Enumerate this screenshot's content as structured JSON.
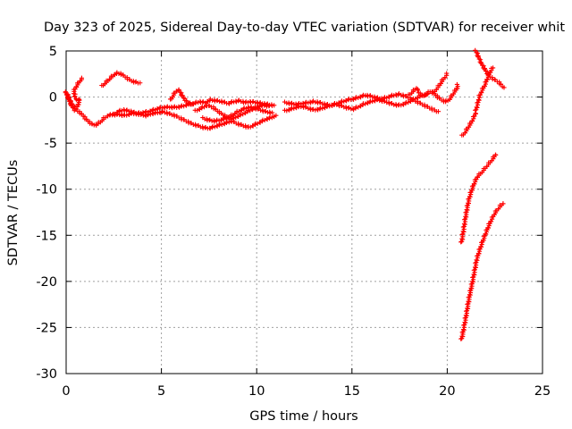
{
  "chart_data": {
    "type": "scatter",
    "title": "Day 323 of 2025, Sidereal Day-to-day VTEC variation (SDTVAR) for receiver whit",
    "xlabel": "GPS time / hours",
    "ylabel": "SDTVAR / TECUs",
    "xlim": [
      0,
      25
    ],
    "ylim": [
      -30,
      5
    ],
    "xticks": [
      0,
      5,
      10,
      15,
      20,
      25
    ],
    "yticks": [
      5,
      0,
      -5,
      -10,
      -15,
      -20,
      -25,
      -30
    ],
    "grid": true,
    "marker": "plus",
    "series": [
      {
        "color": "#ff0000",
        "segments": [
          [
            [
              0.0,
              0.5
            ],
            [
              0.1,
              0.1
            ],
            [
              0.25,
              -0.6
            ],
            [
              0.45,
              -1.2
            ],
            [
              0.6,
              -1.5
            ],
            [
              0.8,
              -1.8
            ],
            [
              1.0,
              -2.3
            ],
            [
              1.2,
              -2.7
            ],
            [
              1.4,
              -3.0
            ],
            [
              1.6,
              -3.0
            ],
            [
              1.8,
              -2.7
            ],
            [
              2.0,
              -2.3
            ],
            [
              2.2,
              -2.0
            ],
            [
              2.5,
              -1.9
            ],
            [
              2.8,
              -1.9
            ],
            [
              3.1,
              -2.0
            ],
            [
              3.4,
              -1.8
            ],
            [
              3.7,
              -1.8
            ],
            [
              4.0,
              -1.7
            ],
            [
              4.3,
              -1.6
            ],
            [
              4.6,
              -1.4
            ],
            [
              4.9,
              -1.2
            ],
            [
              5.2,
              -1.1
            ],
            [
              5.5,
              -1.1
            ],
            [
              5.8,
              -1.1
            ],
            [
              6.1,
              -1.0
            ],
            [
              6.4,
              -0.8
            ],
            [
              6.7,
              -0.7
            ],
            [
              7.0,
              -0.5
            ],
            [
              7.3,
              -0.6
            ],
            [
              7.6,
              -0.3
            ],
            [
              7.9,
              -0.4
            ],
            [
              8.2,
              -0.5
            ],
            [
              8.5,
              -0.7
            ],
            [
              8.8,
              -0.5
            ],
            [
              9.1,
              -0.4
            ],
            [
              9.4,
              -0.6
            ],
            [
              9.7,
              -0.5
            ],
            [
              10.0,
              -0.6
            ],
            [
              10.3,
              -0.7
            ],
            [
              10.6,
              -0.8
            ],
            [
              10.9,
              -0.9
            ]
          ],
          [
            [
              2.5,
              -1.9
            ],
            [
              2.7,
              -1.6
            ],
            [
              3.0,
              -1.4
            ],
            [
              3.3,
              -1.5
            ],
            [
              3.6,
              -1.7
            ],
            [
              3.9,
              -1.9
            ],
            [
              4.2,
              -2.0
            ],
            [
              4.5,
              -1.8
            ],
            [
              4.8,
              -1.7
            ],
            [
              5.1,
              -1.6
            ],
            [
              5.4,
              -1.8
            ],
            [
              5.7,
              -2.0
            ],
            [
              6.0,
              -2.3
            ],
            [
              6.3,
              -2.6
            ],
            [
              6.6,
              -2.9
            ],
            [
              6.9,
              -3.1
            ],
            [
              7.2,
              -3.3
            ],
            [
              7.5,
              -3.4
            ],
            [
              7.8,
              -3.2
            ],
            [
              8.1,
              -3.0
            ],
            [
              8.4,
              -2.8
            ],
            [
              8.7,
              -2.6
            ],
            [
              9.0,
              -2.9
            ],
            [
              9.3,
              -3.1
            ],
            [
              9.6,
              -3.3
            ],
            [
              9.9,
              -3.0
            ],
            [
              10.2,
              -2.7
            ],
            [
              10.5,
              -2.4
            ],
            [
              10.8,
              -2.2
            ],
            [
              11.0,
              -2.0
            ]
          ],
          [
            [
              0.0,
              0.4
            ],
            [
              0.15,
              -0.3
            ],
            [
              0.3,
              -1.0
            ],
            [
              0.45,
              -1.4
            ],
            [
              0.6,
              -1.0
            ],
            [
              0.7,
              -0.3
            ],
            [
              0.5,
              -0.2
            ],
            [
              0.4,
              0.6
            ],
            [
              0.55,
              1.2
            ],
            [
              0.7,
              1.7
            ],
            [
              0.85,
              2.0
            ]
          ],
          [
            [
              1.9,
              1.2
            ],
            [
              2.1,
              1.6
            ],
            [
              2.3,
              2.0
            ],
            [
              2.5,
              2.4
            ],
            [
              2.7,
              2.6
            ],
            [
              2.9,
              2.5
            ],
            [
              3.1,
              2.2
            ],
            [
              3.3,
              1.9
            ],
            [
              3.5,
              1.7
            ],
            [
              3.7,
              1.6
            ],
            [
              3.85,
              1.5
            ]
          ],
          [
            [
              5.5,
              -0.3
            ],
            [
              5.6,
              0.1
            ],
            [
              5.75,
              0.6
            ],
            [
              5.9,
              0.8
            ],
            [
              6.05,
              0.3
            ],
            [
              6.2,
              -0.2
            ],
            [
              6.4,
              -0.6
            ],
            [
              6.6,
              -0.8
            ]
          ],
          [
            [
              6.8,
              -1.5
            ],
            [
              7.1,
              -1.2
            ],
            [
              7.4,
              -0.9
            ],
            [
              7.7,
              -1.1
            ],
            [
              8.0,
              -1.6
            ],
            [
              8.3,
              -2.0
            ],
            [
              8.6,
              -2.4
            ],
            [
              8.9,
              -2.2
            ],
            [
              9.2,
              -1.9
            ],
            [
              9.5,
              -1.6
            ],
            [
              9.8,
              -1.3
            ],
            [
              10.1,
              -1.0
            ],
            [
              10.4,
              -0.9
            ],
            [
              10.7,
              -1.0
            ]
          ],
          [
            [
              7.2,
              -2.3
            ],
            [
              7.5,
              -2.5
            ],
            [
              7.8,
              -2.6
            ],
            [
              8.1,
              -2.5
            ],
            [
              8.4,
              -2.3
            ],
            [
              8.7,
              -2.0
            ],
            [
              9.0,
              -1.6
            ],
            [
              9.3,
              -1.3
            ],
            [
              9.6,
              -1.1
            ],
            [
              9.9,
              -1.2
            ],
            [
              10.2,
              -1.4
            ],
            [
              10.5,
              -1.6
            ],
            [
              10.8,
              -1.7
            ]
          ],
          [
            [
              11.5,
              -1.5
            ],
            [
              11.8,
              -1.3
            ],
            [
              12.1,
              -1.1
            ],
            [
              12.4,
              -1.0
            ],
            [
              12.7,
              -1.2
            ],
            [
              13.0,
              -1.4
            ],
            [
              13.3,
              -1.3
            ],
            [
              13.6,
              -1.1
            ],
            [
              13.9,
              -0.9
            ],
            [
              14.2,
              -0.8
            ],
            [
              14.5,
              -1.0
            ],
            [
              14.8,
              -1.2
            ],
            [
              15.1,
              -1.3
            ],
            [
              15.4,
              -1.0
            ],
            [
              15.7,
              -0.7
            ],
            [
              16.0,
              -0.5
            ],
            [
              16.3,
              -0.3
            ],
            [
              16.6,
              -0.4
            ],
            [
              16.9,
              -0.6
            ],
            [
              17.2,
              -0.8
            ],
            [
              17.5,
              -0.9
            ],
            [
              17.8,
              -0.7
            ],
            [
              18.1,
              -0.4
            ],
            [
              18.4,
              -0.1
            ],
            [
              18.7,
              0.2
            ],
            [
              19.0,
              0.3
            ]
          ],
          [
            [
              11.5,
              -0.6
            ],
            [
              11.8,
              -0.7
            ],
            [
              12.1,
              -0.8
            ],
            [
              12.4,
              -0.7
            ],
            [
              12.7,
              -0.6
            ],
            [
              13.0,
              -0.5
            ],
            [
              13.3,
              -0.6
            ],
            [
              13.6,
              -0.8
            ],
            [
              13.9,
              -0.9
            ],
            [
              14.2,
              -0.7
            ],
            [
              14.5,
              -0.5
            ],
            [
              14.8,
              -0.3
            ],
            [
              15.1,
              -0.2
            ],
            [
              15.4,
              0.0
            ],
            [
              15.7,
              0.2
            ],
            [
              16.0,
              0.1
            ],
            [
              16.3,
              -0.1
            ],
            [
              16.6,
              -0.2
            ],
            [
              16.9,
              0.0
            ],
            [
              17.2,
              0.2
            ],
            [
              17.5,
              0.3
            ],
            [
              17.8,
              0.1
            ],
            [
              18.1,
              -0.2
            ],
            [
              18.4,
              -0.5
            ],
            [
              18.7,
              -0.8
            ],
            [
              19.0,
              -1.1
            ],
            [
              19.3,
              -1.4
            ],
            [
              19.5,
              -1.6
            ]
          ],
          [
            [
              18.0,
              0.2
            ],
            [
              18.2,
              0.6
            ],
            [
              18.4,
              1.0
            ],
            [
              18.5,
              0.5
            ],
            [
              18.7,
              0.1
            ],
            [
              18.9,
              0.3
            ],
            [
              19.1,
              0.6
            ],
            [
              19.3,
              0.4
            ],
            [
              19.5,
              0.0
            ],
            [
              19.7,
              -0.3
            ],
            [
              19.9,
              -0.5
            ],
            [
              20.1,
              -0.3
            ],
            [
              20.3,
              0.3
            ],
            [
              20.5,
              0.9
            ],
            [
              20.55,
              1.3
            ]
          ],
          [
            [
              19.3,
              0.5
            ],
            [
              19.45,
              0.9
            ],
            [
              19.6,
              1.3
            ],
            [
              19.75,
              1.8
            ],
            [
              19.9,
              2.2
            ],
            [
              20.0,
              2.5
            ]
          ],
          [
            [
              20.8,
              -4.2
            ],
            [
              20.95,
              -3.8
            ],
            [
              21.1,
              -3.3
            ],
            [
              21.25,
              -2.8
            ],
            [
              21.4,
              -2.2
            ],
            [
              21.5,
              -1.7
            ]
          ],
          [
            [
              21.5,
              -1.5
            ],
            [
              21.6,
              -0.7
            ],
            [
              21.7,
              0.1
            ],
            [
              21.8,
              0.6
            ],
            [
              21.9,
              1.0
            ],
            [
              22.0,
              1.4
            ],
            [
              22.1,
              2.0
            ],
            [
              22.2,
              2.5
            ],
            [
              22.3,
              2.9
            ],
            [
              22.4,
              3.2
            ]
          ],
          [
            [
              21.5,
              5.0
            ],
            [
              21.65,
              4.3
            ],
            [
              21.8,
              3.6
            ],
            [
              21.95,
              3.1
            ],
            [
              22.1,
              2.6
            ],
            [
              22.25,
              2.2
            ],
            [
              22.4,
              2.0
            ],
            [
              22.55,
              1.8
            ],
            [
              22.7,
              1.6
            ],
            [
              22.85,
              1.3
            ],
            [
              22.95,
              1.0
            ]
          ],
          [
            [
              20.75,
              -15.8
            ],
            [
              20.85,
              -14.5
            ],
            [
              20.95,
              -13.2
            ],
            [
              21.05,
              -12.0
            ],
            [
              21.15,
              -11.0
            ],
            [
              21.3,
              -10.0
            ],
            [
              21.45,
              -9.2
            ],
            [
              21.6,
              -8.6
            ],
            [
              21.8,
              -8.2
            ],
            [
              22.0,
              -7.7
            ],
            [
              22.2,
              -7.2
            ],
            [
              22.4,
              -6.7
            ],
            [
              22.55,
              -6.2
            ]
          ],
          [
            [
              20.75,
              -26.3
            ],
            [
              20.85,
              -25.3
            ],
            [
              20.95,
              -24.2
            ],
            [
              21.05,
              -23.0
            ],
            [
              21.15,
              -21.8
            ],
            [
              21.25,
              -20.8
            ],
            [
              21.35,
              -19.8
            ],
            [
              21.45,
              -18.7
            ],
            [
              21.55,
              -17.6
            ],
            [
              21.7,
              -16.6
            ],
            [
              21.85,
              -15.7
            ],
            [
              22.0,
              -14.9
            ],
            [
              22.15,
              -14.1
            ],
            [
              22.3,
              -13.4
            ],
            [
              22.45,
              -12.8
            ],
            [
              22.6,
              -12.3
            ],
            [
              22.8,
              -11.8
            ],
            [
              22.95,
              -11.5
            ]
          ]
        ]
      }
    ]
  }
}
